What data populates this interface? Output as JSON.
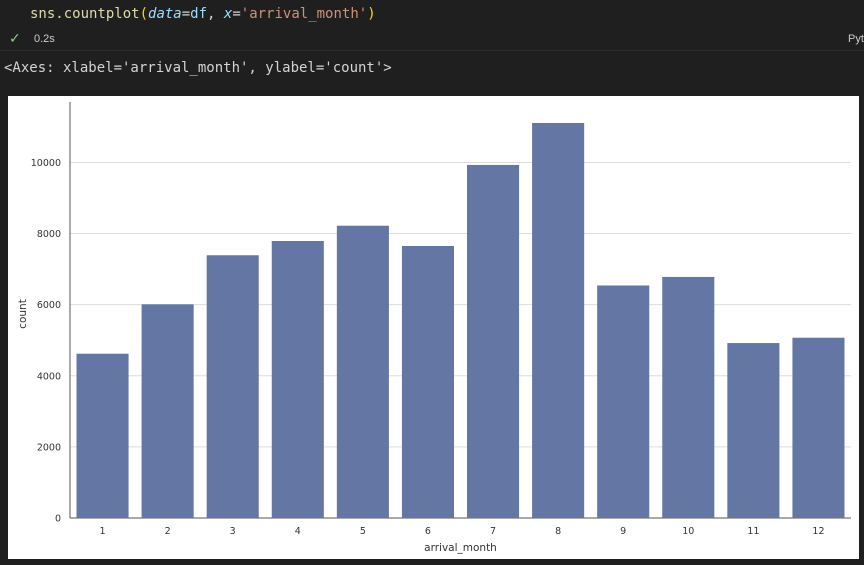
{
  "cell": {
    "code": {
      "fn": "sns.countplot",
      "open": "(",
      "p1": "data",
      "eq1": "=",
      "v1": "df",
      "comma": ", ",
      "p2": "x",
      "eq2": "=",
      "v2": "'arrival_month'",
      "close": ")"
    },
    "status": {
      "check": "✓",
      "time": "0.2s",
      "kernel": "Pyt"
    },
    "output": "<Axes: xlabel='arrival_month', ylabel='count'>"
  },
  "chart_data": {
    "type": "bar",
    "categories": [
      "1",
      "2",
      "3",
      "4",
      "5",
      "6",
      "7",
      "8",
      "9",
      "10",
      "11",
      "12"
    ],
    "values": [
      4620,
      6010,
      7390,
      7790,
      8220,
      7650,
      9930,
      11110,
      6540,
      6780,
      4920,
      5070
    ],
    "title": "",
    "xlabel": "arrival_month",
    "ylabel": "count",
    "ylim": [
      0,
      11700
    ],
    "yticks": [
      0,
      2000,
      4000,
      6000,
      8000,
      10000
    ],
    "grid": true,
    "bar_color": "#6476a3"
  }
}
